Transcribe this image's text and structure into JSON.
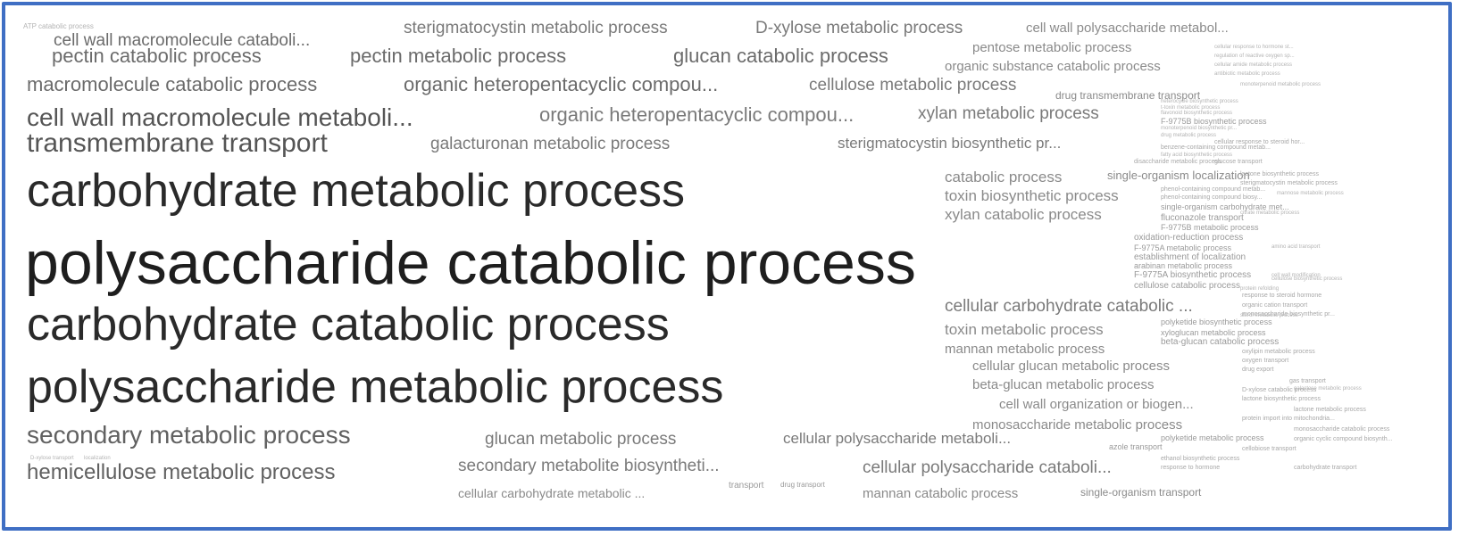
{
  "frame_color": "#3f6fc4",
  "terms": [
    {
      "text": "polysaccharide catabolic process",
      "color": "#1e1e1e"
    },
    {
      "text": "carbohydrate metabolic process",
      "color": "#2a2a2a"
    },
    {
      "text": "carbohydrate catabolic process",
      "color": "#2a2a2a"
    },
    {
      "text": "polysaccharide metabolic process",
      "color": "#2a2a2a"
    },
    {
      "text": "transmembrane transport",
      "color": "#555555"
    },
    {
      "text": "cell wall macromolecule metaboli...",
      "color": "#555555"
    },
    {
      "text": "secondary metabolic process",
      "color": "#616161"
    },
    {
      "text": "hemicellulose metabolic process",
      "color": "#616161"
    },
    {
      "text": "macromolecule catabolic process",
      "color": "#6b6b6b"
    },
    {
      "text": "organic heteropentacyclic compou...",
      "color": "#6b6b6b"
    },
    {
      "text": "cell wall macromolecule cataboli...",
      "color": "#6b6b6b"
    },
    {
      "text": "pectin catabolic process",
      "color": "#6b6b6b"
    },
    {
      "text": "pectin metabolic process",
      "color": "#6b6b6b"
    },
    {
      "text": "glucan catabolic process",
      "color": "#6b6b6b"
    },
    {
      "text": "organic heteropentacyclic compou...",
      "color": "#7a7a7a"
    },
    {
      "text": "sterigmatocystin metabolic process",
      "color": "#7a7a7a"
    },
    {
      "text": "D-xylose metabolic process",
      "color": "#7a7a7a"
    },
    {
      "text": "galacturonan metabolic process",
      "color": "#7a7a7a"
    },
    {
      "text": "sterigmatocystin biosynthetic pr...",
      "color": "#7a7a7a"
    },
    {
      "text": "cellulose metabolic process",
      "color": "#7a7a7a"
    },
    {
      "text": "xylan metabolic process",
      "color": "#7a7a7a"
    },
    {
      "text": "glucan metabolic process",
      "color": "#7a7a7a"
    },
    {
      "text": "cellular polysaccharide metaboli...",
      "color": "#7a7a7a"
    },
    {
      "text": "secondary metabolite biosyntheti...",
      "color": "#7a7a7a"
    },
    {
      "text": "cellular polysaccharide cataboli...",
      "color": "#7a7a7a"
    },
    {
      "text": "cellular carbohydrate catabolic ...",
      "color": "#7a7a7a"
    },
    {
      "text": "cell wall polysaccharide metabol...",
      "color": "#8a8a8a"
    },
    {
      "text": "pentose metabolic process",
      "color": "#8a8a8a"
    },
    {
      "text": "organic substance catabolic process",
      "color": "#8a8a8a"
    },
    {
      "text": "catabolic process",
      "color": "#8a8a8a"
    },
    {
      "text": "single-organism localization",
      "color": "#8a8a8a"
    },
    {
      "text": "toxin biosynthetic process",
      "color": "#8a8a8a"
    },
    {
      "text": "xylan catabolic process",
      "color": "#8a8a8a"
    },
    {
      "text": "toxin metabolic process",
      "color": "#8a8a8a"
    },
    {
      "text": "mannan metabolic process",
      "color": "#8a8a8a"
    },
    {
      "text": "cellular glucan metabolic process",
      "color": "#8a8a8a"
    },
    {
      "text": "beta-glucan metabolic process",
      "color": "#8a8a8a"
    },
    {
      "text": "cell wall organization or biogen...",
      "color": "#8a8a8a"
    },
    {
      "text": "monosaccharide metabolic process",
      "color": "#8a8a8a"
    },
    {
      "text": "cellular carbohydrate metabolic ...",
      "color": "#8a8a8a"
    },
    {
      "text": "mannan catabolic process",
      "color": "#8a8a8a"
    },
    {
      "text": "single-organism transport",
      "color": "#8a8a8a"
    },
    {
      "text": "drug transmembrane transport",
      "color": "#8a8a8a"
    },
    {
      "text": "F-9775B biosynthetic process",
      "color": "#9a9a9a"
    },
    {
      "text": "F-9775B metabolic process",
      "color": "#9a9a9a"
    },
    {
      "text": "oxidation-reduction process",
      "color": "#9a9a9a"
    },
    {
      "text": "F-9775A metabolic process",
      "color": "#9a9a9a"
    },
    {
      "text": "establishment of localization",
      "color": "#9a9a9a"
    },
    {
      "text": "arabinan metabolic process",
      "color": "#9a9a9a"
    },
    {
      "text": "F-9775A biosynthetic process",
      "color": "#9a9a9a"
    },
    {
      "text": "cellulose catabolic process",
      "color": "#9a9a9a"
    },
    {
      "text": "fluconazole transport",
      "color": "#9a9a9a"
    },
    {
      "text": "single-organism carbohydrate met...",
      "color": "#9a9a9a"
    },
    {
      "text": "polyketide biosynthetic process",
      "color": "#9a9a9a"
    },
    {
      "text": "xyloglucan metabolic process",
      "color": "#9a9a9a"
    },
    {
      "text": "beta-glucan catabolic process",
      "color": "#9a9a9a"
    },
    {
      "text": "polyketide metabolic process",
      "color": "#9a9a9a"
    },
    {
      "text": "azole transport",
      "color": "#9a9a9a"
    },
    {
      "text": "transport",
      "color": "#9a9a9a"
    },
    {
      "text": "drug transport",
      "color": "#9a9a9a"
    },
    {
      "text": "phenol-containing compound metab...",
      "color": "#a8a8a8"
    },
    {
      "text": "phenol-containing compound biosy...",
      "color": "#a8a8a8"
    },
    {
      "text": "sterigmatocystin metabolic process",
      "color": "#a8a8a8"
    },
    {
      "text": "lactone biosynthetic process",
      "color": "#a8a8a8"
    },
    {
      "text": "benzene-containing compound metab...",
      "color": "#a8a8a8"
    },
    {
      "text": "glucose transport",
      "color": "#a8a8a8"
    },
    {
      "text": "disaccharide metabolic process",
      "color": "#a8a8a8"
    },
    {
      "text": "cellular response to steroid hor...",
      "color": "#a8a8a8"
    },
    {
      "text": "response to steroid hormone",
      "color": "#a8a8a8"
    },
    {
      "text": "organic cation transport",
      "color": "#a8a8a8"
    },
    {
      "text": "monosaccharide biosynthetic pr...",
      "color": "#a8a8a8"
    },
    {
      "text": "oxylipin metabolic process",
      "color": "#a8a8a8"
    },
    {
      "text": "oxygen transport",
      "color": "#a8a8a8"
    },
    {
      "text": "drug export",
      "color": "#a8a8a8"
    },
    {
      "text": "gas transport",
      "color": "#a8a8a8"
    },
    {
      "text": "D-xylose catabolic process",
      "color": "#a8a8a8"
    },
    {
      "text": "lactone biosynthetic process",
      "color": "#a8a8a8"
    },
    {
      "text": "lactone metabolic process",
      "color": "#a8a8a8"
    },
    {
      "text": "protein import into mitochondria...",
      "color": "#a8a8a8"
    },
    {
      "text": "monosaccharide catabolic process",
      "color": "#a8a8a8"
    },
    {
      "text": "organic cyclic compound biosynth...",
      "color": "#a8a8a8"
    },
    {
      "text": "cellobiose transport",
      "color": "#a8a8a8"
    },
    {
      "text": "ethanol biosynthetic process",
      "color": "#a8a8a8"
    },
    {
      "text": "response to hormone",
      "color": "#a8a8a8"
    },
    {
      "text": "carbohydrate transport",
      "color": "#a8a8a8"
    },
    {
      "text": "cellular response to hormone st...",
      "color": "#b3b3b3"
    },
    {
      "text": "regulation of reactive oxygen sp...",
      "color": "#b3b3b3"
    },
    {
      "text": "cellular amide metabolic process",
      "color": "#b3b3b3"
    },
    {
      "text": "antibiotic metabolic process",
      "color": "#b3b3b3"
    },
    {
      "text": "monoterpenoid metabolic process",
      "color": "#b3b3b3"
    },
    {
      "text": "heterocycle biosynthetic process",
      "color": "#b3b3b3"
    },
    {
      "text": "t-toxin metabolic process",
      "color": "#b3b3b3"
    },
    {
      "text": "flavonoid biosynthetic process",
      "color": "#b3b3b3"
    },
    {
      "text": "sterol metabolic process",
      "color": "#b3b3b3"
    },
    {
      "text": "monoterpenoid biosynthetic pr...",
      "color": "#b3b3b3"
    },
    {
      "text": "drug metabolic process",
      "color": "#b3b3b3"
    },
    {
      "text": "citrate metabolic process",
      "color": "#b3b3b3"
    },
    {
      "text": "amino acid transport",
      "color": "#b3b3b3"
    },
    {
      "text": "cell wall modification",
      "color": "#b3b3b3"
    },
    {
      "text": "mannose metabolic process",
      "color": "#b3b3b3"
    },
    {
      "text": "fatty acid biosynthetic process",
      "color": "#b3b3b3"
    },
    {
      "text": "protein refolding",
      "color": "#b3b3b3"
    },
    {
      "text": "galactose metabolic process",
      "color": "#b3b3b3"
    },
    {
      "text": "D-xylose transport",
      "color": "#b3b3b3"
    },
    {
      "text": "localization",
      "color": "#b3b3b3"
    },
    {
      "text": "cellulose biosynthetic process",
      "color": "#b3b3b3"
    },
    {
      "text": "ATP catabolic process",
      "color": "#b3b3b3"
    }
  ]
}
